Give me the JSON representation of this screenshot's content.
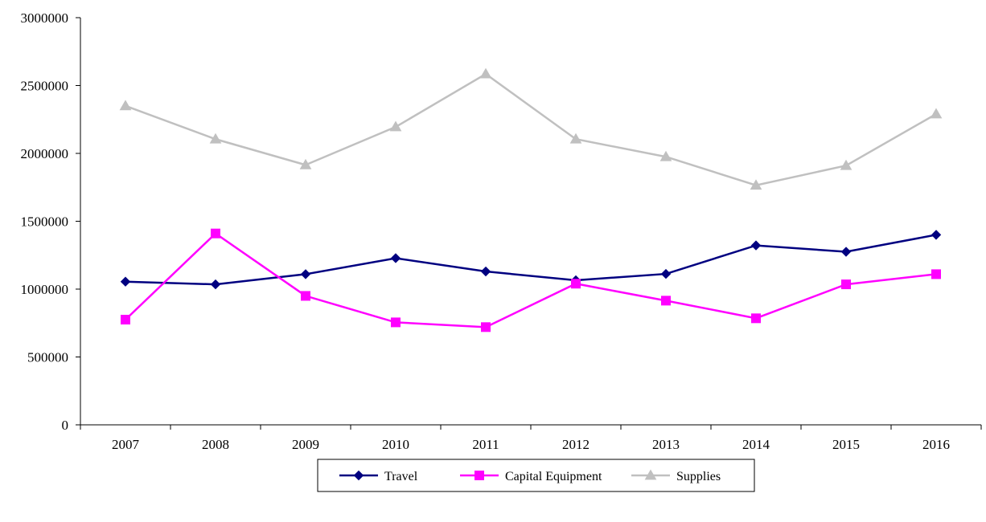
{
  "chart_data": {
    "type": "line",
    "title": "",
    "xlabel": "",
    "ylabel": "",
    "categories": [
      "2007",
      "2008",
      "2009",
      "2010",
      "2011",
      "2012",
      "2013",
      "2014",
      "2015",
      "2016"
    ],
    "ylim": [
      0,
      3000000
    ],
    "y_ticks": [
      0,
      500000,
      1000000,
      1500000,
      2000000,
      2500000,
      3000000
    ],
    "y_tick_labels": [
      "0",
      "500000",
      "1000000",
      "1500000",
      "2000000",
      "2500000",
      "3000000"
    ],
    "grid": false,
    "legend_position": "bottom",
    "series": [
      {
        "name": "Travel",
        "color": "#000080",
        "marker": "diamond",
        "values": [
          1055000,
          1035000,
          1110000,
          1228000,
          1130000,
          1065000,
          1112000,
          1322000,
          1275000,
          1400000
        ]
      },
      {
        "name": "Capital Equipment",
        "color": "#FF00FF",
        "marker": "square",
        "values": [
          775000,
          1410000,
          950000,
          755000,
          720000,
          1040000,
          915000,
          785000,
          1035000,
          1110000
        ]
      },
      {
        "name": "Supplies",
        "color": "#C0C0C0",
        "marker": "triangle",
        "values": [
          2350000,
          2105000,
          1915000,
          2195000,
          2585000,
          2105000,
          1975000,
          1765000,
          1910000,
          2290000
        ]
      }
    ]
  }
}
